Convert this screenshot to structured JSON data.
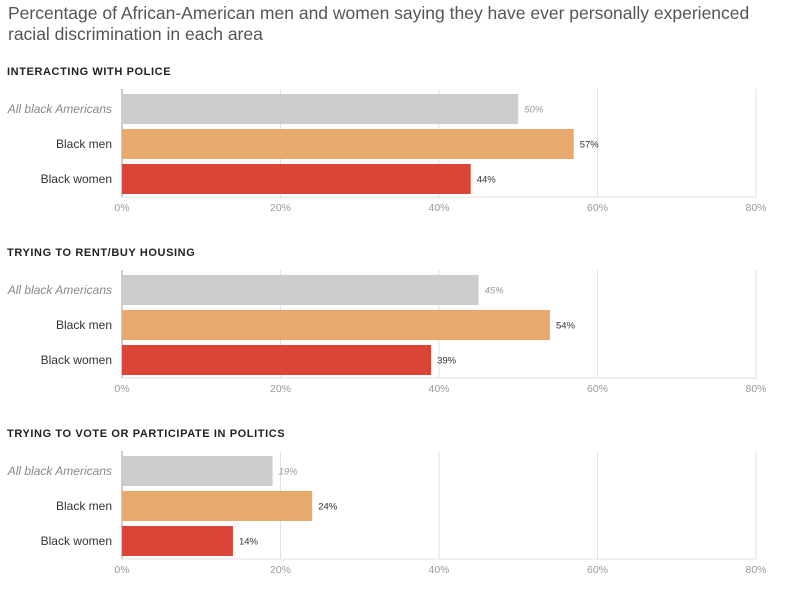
{
  "title": "Percentage of African-American men and women saying they have ever personally experienced racial discrimination in each area",
  "colors": {
    "all": "#cccccc",
    "men": "#e8a96c",
    "women": "#d94536",
    "grid": "#e2e2e2",
    "axis": "#999999"
  },
  "chart_data": [
    {
      "type": "bar",
      "orientation": "horizontal",
      "title": "INTERACTING WITH POLICE",
      "categories": [
        "All black Americans",
        "Black men",
        "Black women"
      ],
      "values": [
        50,
        57,
        44
      ],
      "labels": [
        "50%",
        "57%",
        "44%"
      ],
      "xlim": [
        0,
        80
      ],
      "ticks": [
        0,
        20,
        40,
        60,
        80
      ],
      "tick_labels": [
        "0%",
        "20%",
        "40%",
        "60%",
        "80%"
      ],
      "grid": true
    },
    {
      "type": "bar",
      "orientation": "horizontal",
      "title": "TRYING TO RENT/BUY HOUSING",
      "categories": [
        "All black Americans",
        "Black men",
        "Black women"
      ],
      "values": [
        45,
        54,
        39
      ],
      "labels": [
        "45%",
        "54%",
        "39%"
      ],
      "xlim": [
        0,
        80
      ],
      "ticks": [
        0,
        20,
        40,
        60,
        80
      ],
      "tick_labels": [
        "0%",
        "20%",
        "40%",
        "60%",
        "80%"
      ],
      "grid": true
    },
    {
      "type": "bar",
      "orientation": "horizontal",
      "title": "TRYING TO VOTE OR PARTICIPATE IN POLITICS",
      "categories": [
        "All black Americans",
        "Black men",
        "Black women"
      ],
      "values": [
        19,
        24,
        14
      ],
      "labels": [
        "19%",
        "24%",
        "14%"
      ],
      "xlim": [
        0,
        80
      ],
      "ticks": [
        0,
        20,
        40,
        60,
        80
      ],
      "tick_labels": [
        "0%",
        "20%",
        "40%",
        "60%",
        "80%"
      ],
      "grid": true
    }
  ]
}
